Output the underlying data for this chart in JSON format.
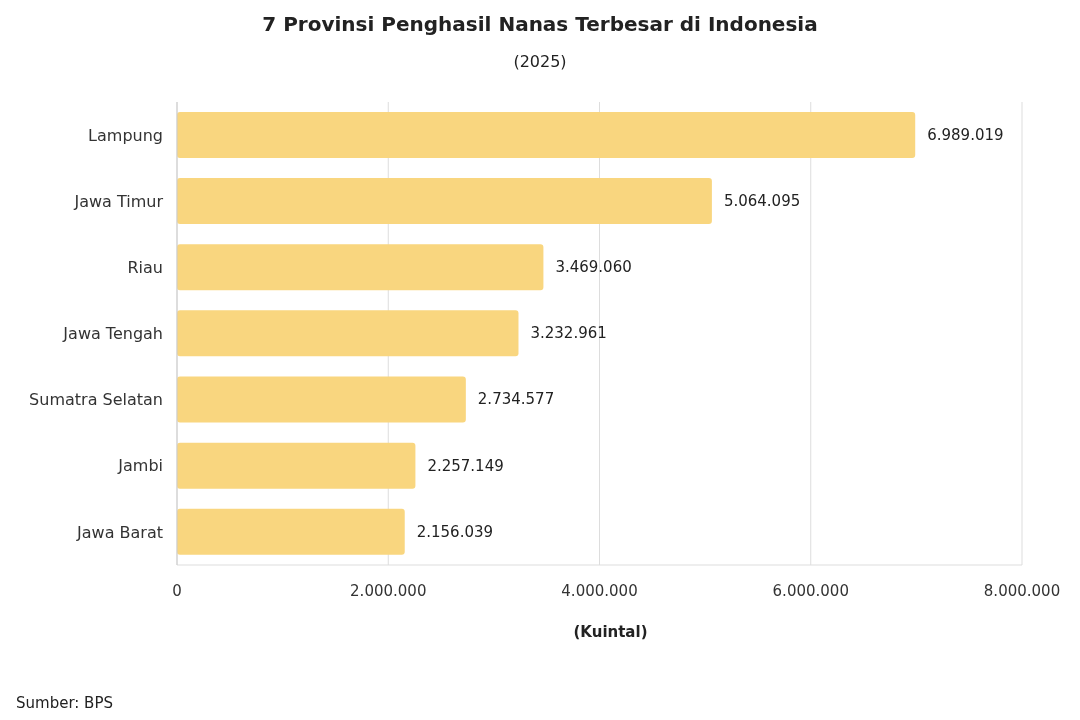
{
  "chart_data": {
    "type": "bar",
    "orientation": "horizontal",
    "title": "7 Provinsi Penghasil Nanas Terbesar di Indonesia",
    "subtitle": "(2025)",
    "xlabel": "(Kuintal)",
    "categories": [
      "Lampung",
      "Jawa Timur",
      "Riau",
      "Jawa Tengah",
      "Sumatra Selatan",
      "Jambi",
      "Jawa Barat"
    ],
    "values": [
      6989019,
      5064095,
      3469060,
      3232961,
      2734577,
      2257149,
      2156039
    ],
    "value_labels": [
      "6.989.019",
      "5.064.095",
      "3.469.060",
      "3.232.961",
      "2.734.577",
      "2.257.149",
      "2.156.039"
    ],
    "color": "#f9d67f",
    "xlim": [
      0,
      8000000
    ],
    "xticks": [
      0,
      {
        "value": 2000000,
        "label": "2.000.000"
      },
      {
        "value": 4000000,
        "label": "4.000.000"
      },
      {
        "value": 6000000,
        "label": "6.000.000"
      },
      {
        "value": 8000000,
        "label": "8.000.000"
      }
    ],
    "grid": "x",
    "annotations": [
      "Sumber: BPS"
    ]
  }
}
